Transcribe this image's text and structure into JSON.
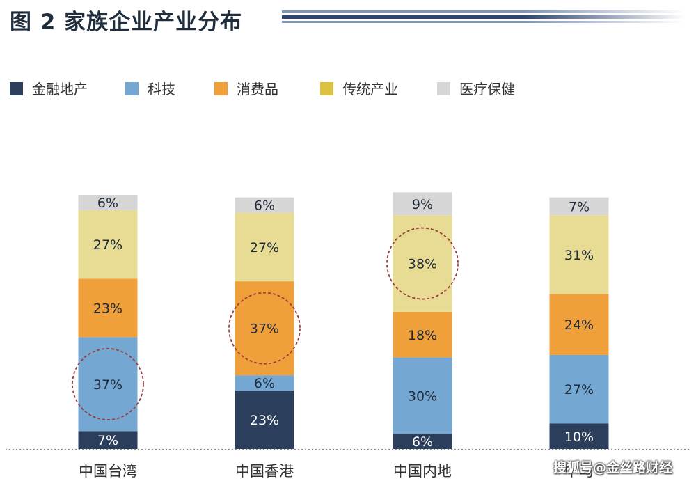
{
  "title": "图 2 家族企业产业分布",
  "watermark": "搜狐号@金丝路财经",
  "colors": {
    "金融地产": "#2b3e5c",
    "科技": "#74a7d2",
    "消费品": "#f0a03a",
    "传统产业": "#e8dc95",
    "医疗保健": "#d6d6d6",
    "legend_传统产业": "#dcc243",
    "circle": "#9a3c3c"
  },
  "chart_data": {
    "type": "bar",
    "stacked": true,
    "categories": [
      "中国台湾",
      "中国香港",
      "中国内地",
      "中马"
    ],
    "series": [
      {
        "name": "金融地产",
        "values": [
          7,
          23,
          6,
          10
        ],
        "labels": [
          "7%",
          "23%",
          "6%",
          "10%"
        ]
      },
      {
        "name": "科技",
        "values": [
          37,
          6,
          30,
          27
        ],
        "labels": [
          "37%",
          "6%",
          "30%",
          "27%"
        ]
      },
      {
        "name": "消费品",
        "values": [
          23,
          37,
          18,
          24
        ],
        "labels": [
          "23%",
          "37%",
          "18%",
          "24%"
        ]
      },
      {
        "name": "传统产业",
        "values": [
          27,
          27,
          38,
          31
        ],
        "labels": [
          "27%",
          "27%",
          "38%",
          "31%"
        ]
      },
      {
        "name": "医疗保健",
        "values": [
          6,
          6,
          9,
          7
        ],
        "labels": [
          "6%",
          "6%",
          "9%",
          "7%"
        ]
      }
    ],
    "highlighted": [
      {
        "category": "中国台湾",
        "series": "科技"
      },
      {
        "category": "中国香港",
        "series": "消费品"
      },
      {
        "category": "中国内地",
        "series": "传统产业"
      }
    ],
    "legend_position": "top-left",
    "grid": false
  }
}
